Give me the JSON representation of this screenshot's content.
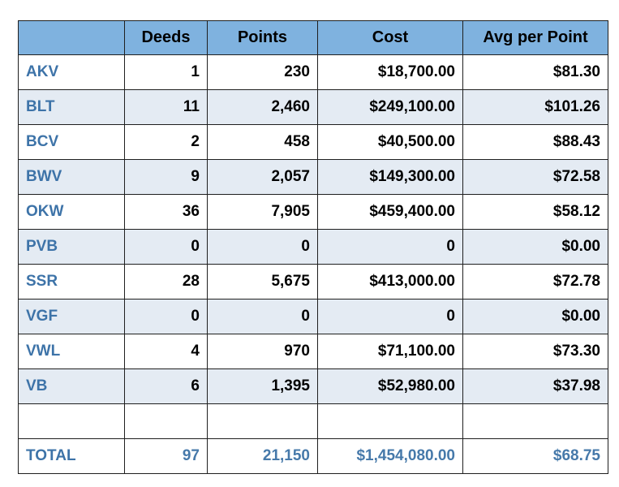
{
  "headers": [
    "",
    "Deeds",
    "Points",
    "Cost",
    "Avg per Point"
  ],
  "rows": [
    {
      "resort": "AKV",
      "deeds": "1",
      "points": "230",
      "cost": "$18,700.00",
      "avg": "$81.30"
    },
    {
      "resort": "BLT",
      "deeds": "11",
      "points": "2,460",
      "cost": "$249,100.00",
      "avg": "$101.26"
    },
    {
      "resort": "BCV",
      "deeds": "2",
      "points": "458",
      "cost": "$40,500.00",
      "avg": "$88.43"
    },
    {
      "resort": "BWV",
      "deeds": "9",
      "points": "2,057",
      "cost": "$149,300.00",
      "avg": "$72.58"
    },
    {
      "resort": "OKW",
      "deeds": "36",
      "points": "7,905",
      "cost": "$459,400.00",
      "avg": "$58.12"
    },
    {
      "resort": "PVB",
      "deeds": "0",
      "points": "0",
      "cost": "0",
      "avg": "$0.00"
    },
    {
      "resort": "SSR",
      "deeds": "28",
      "points": "5,675",
      "cost": "$413,000.00",
      "avg": "$72.78"
    },
    {
      "resort": "VGF",
      "deeds": "0",
      "points": "0",
      "cost": "0",
      "avg": "$0.00"
    },
    {
      "resort": "VWL",
      "deeds": "4",
      "points": "970",
      "cost": "$71,100.00",
      "avg": "$73.30"
    },
    {
      "resort": "VB",
      "deeds": "6",
      "points": "1,395",
      "cost": "$52,980.00",
      "avg": "$37.98"
    }
  ],
  "total": {
    "resort": "TOTAL",
    "deeds": "97",
    "points": "21,150",
    "cost": "$1,454,080.00",
    "avg": "$68.75"
  },
  "colors": {
    "header_bg": "#7fb2df",
    "alt_row_bg": "#e4ebf3",
    "label_text": "#3d73a8"
  }
}
